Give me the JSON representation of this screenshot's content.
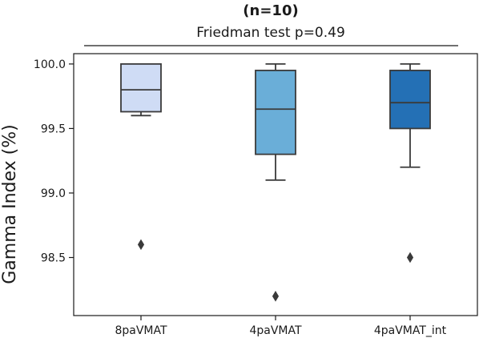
{
  "chart_data": {
    "type": "box",
    "title": "(n=10)",
    "subtitle": "Friedman test p=0.49",
    "ylabel": "Gamma Index (%)",
    "xlabel": "",
    "ylim": [
      98.05,
      100.08
    ],
    "yticks": [
      100.0,
      99.5,
      99.0,
      98.5
    ],
    "ytick_labels": [
      "100.0",
      "99.5",
      "99.0",
      "98.5"
    ],
    "grid": false,
    "categories": [
      "8paVMAT",
      "4paVMAT",
      "4paVMAT_int"
    ],
    "boxes": [
      {
        "category": "8paVMAT",
        "color": "#cfdcf5",
        "whisker_low": 99.6,
        "q1": 99.63,
        "median": 99.8,
        "q3": 100.0,
        "whisker_high": 100.0,
        "outliers": [
          98.6
        ]
      },
      {
        "category": "4paVMAT",
        "color": "#6aaed8",
        "whisker_low": 99.1,
        "q1": 99.3,
        "median": 99.65,
        "q3": 99.95,
        "whisker_high": 100.0,
        "outliers": [
          98.2
        ]
      },
      {
        "category": "4paVMAT_int",
        "color": "#2470b5",
        "whisker_low": 99.2,
        "q1": 99.5,
        "median": 99.7,
        "q3": 99.95,
        "whisker_high": 100.0,
        "outliers": [
          98.5
        ]
      }
    ],
    "line_color": "#3a3a3a"
  }
}
